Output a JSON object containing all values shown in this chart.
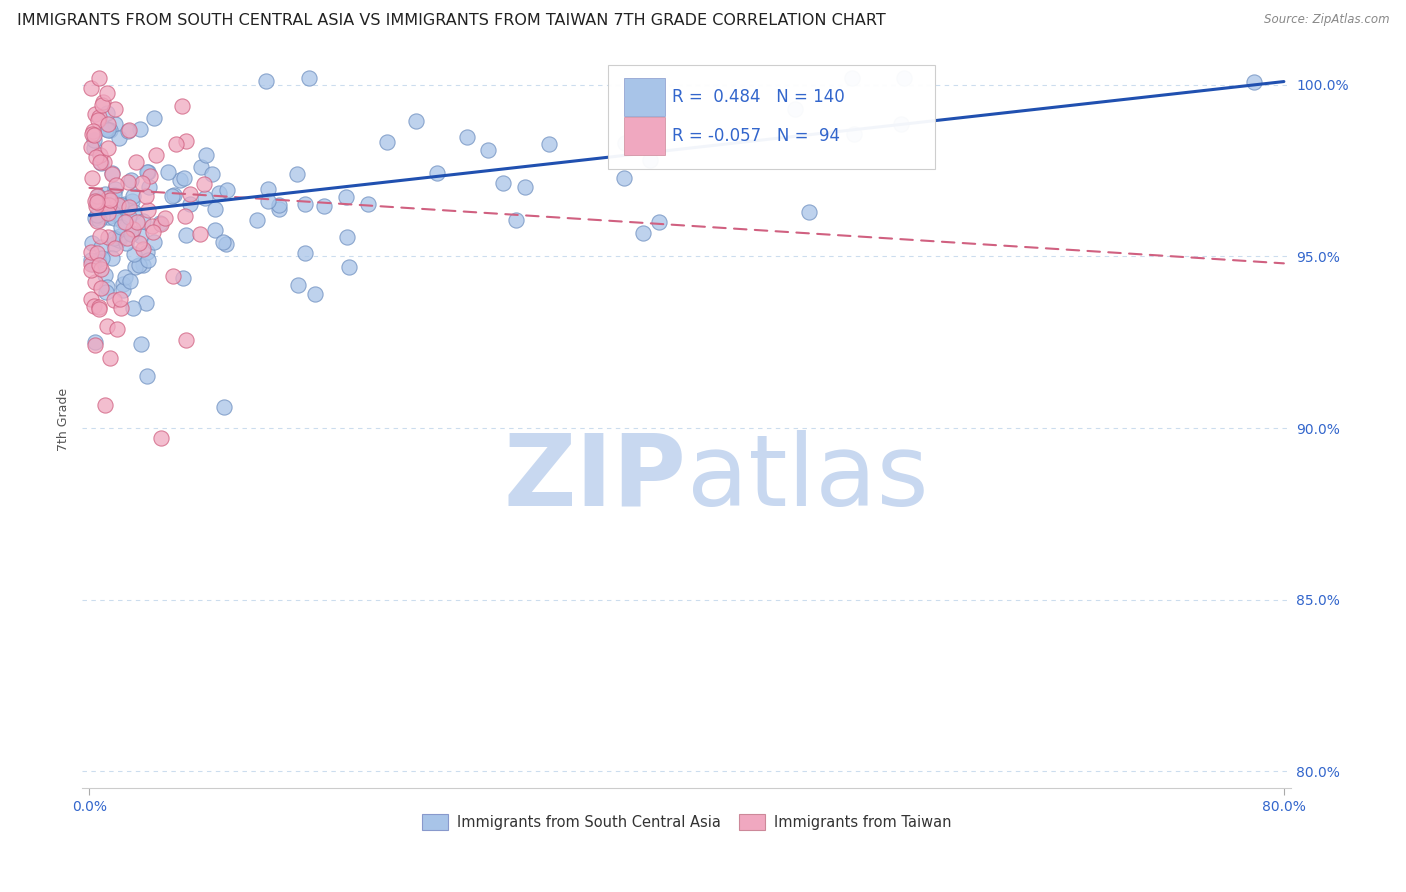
{
  "title": "IMMIGRANTS FROM SOUTH CENTRAL ASIA VS IMMIGRANTS FROM TAIWAN 7TH GRADE CORRELATION CHART",
  "source": "Source: ZipAtlas.com",
  "ylabel": "7th Grade",
  "legend_blue_label": "Immigrants from South Central Asia",
  "legend_pink_label": "Immigrants from Taiwan",
  "r_blue": 0.484,
  "n_blue": 140,
  "r_pink": -0.057,
  "n_pink": 94,
  "blue_color": "#a8c4e8",
  "pink_color": "#f0a8c0",
  "blue_edge_color": "#7090c0",
  "pink_edge_color": "#d06080",
  "blue_line_color": "#2050b0",
  "pink_line_color": "#d06080",
  "watermark_zip_color": "#c8d8f0",
  "watermark_atlas_color": "#c8d8f0",
  "background_color": "#ffffff",
  "grid_color": "#ccddee",
  "title_fontsize": 11.5,
  "axis_label_fontsize": 9,
  "tick_fontsize": 10,
  "xlim": [
    0.0,
    0.8
  ],
  "ylim": [
    0.795,
    1.01
  ],
  "x_tick_vals": [
    0.0,
    0.8
  ],
  "x_tick_labels": [
    "0.0%",
    "80.0%"
  ],
  "y_tick_vals": [
    0.8,
    0.85,
    0.9,
    0.95,
    1.0
  ],
  "y_tick_labels": [
    "80.0%",
    "85.0%",
    "90.0%",
    "95.0%",
    "100.0%"
  ]
}
